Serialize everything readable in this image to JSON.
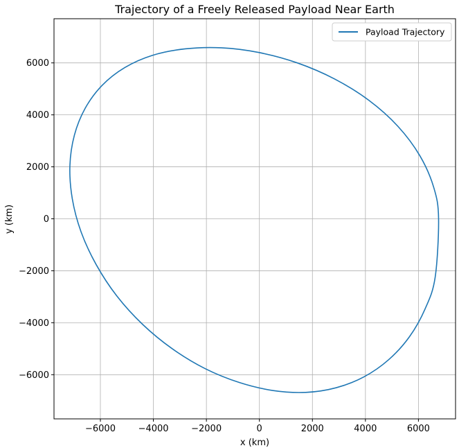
{
  "chart_data": {
    "type": "line",
    "title": "Trajectory of a Freely Released Payload Near Earth",
    "xlabel": "x (km)",
    "ylabel": "y (km)",
    "xlim": [
      -7750,
      7400
    ],
    "ylim": [
      -7700,
      7700
    ],
    "xticks": [
      -6000,
      -4000,
      -2000,
      0,
      2000,
      4000,
      6000
    ],
    "yticks": [
      -6000,
      -4000,
      -2000,
      0,
      2000,
      4000,
      6000
    ],
    "xtick_labels": [
      "−6000",
      "−4000",
      "−2000",
      "0",
      "2000",
      "4000",
      "6000"
    ],
    "ytick_labels": [
      "−6000",
      "−4000",
      "−2000",
      "0",
      "2000",
      "4000",
      "6000"
    ],
    "grid": true,
    "legend_position": "top-right",
    "series": [
      {
        "name": "Payload Trajectory",
        "color": "#1f77b4",
        "x": [
          6760,
          6580,
          6058,
          5225,
          4130,
          2840,
          1430,
          -20,
          -1430,
          -2800,
          -4040,
          -5080,
          -5930,
          -6570,
          -6980,
          -7150,
          -7060,
          -6730,
          -6160,
          -5380,
          -4410,
          -3290,
          -2060,
          -760,
          520,
          1750,
          2900,
          3950,
          4880,
          5660,
          6250,
          6630,
          6760
        ],
        "y": [
          0,
          1200,
          2420,
          3560,
          4560,
          5380,
          6000,
          6400,
          6580,
          6540,
          6290,
          5820,
          5140,
          4260,
          3220,
          2040,
          770,
          -500,
          -1760,
          -2970,
          -4060,
          -5000,
          -5760,
          -6300,
          -6610,
          -6680,
          -6500,
          -6080,
          -5420,
          -4540,
          -3470,
          -2260,
          0
        ]
      }
    ]
  }
}
